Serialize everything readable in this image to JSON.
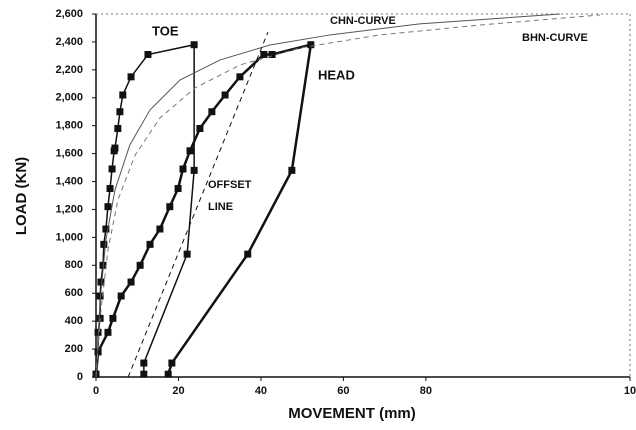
{
  "chart_data": {
    "type": "line",
    "xlabel": "MOVEMENT (mm)",
    "ylabel": "LOAD (KN)",
    "xlim": [
      0,
      129.5
    ],
    "ylim": [
      0,
      2600
    ],
    "xticks": [
      0,
      20,
      40,
      60,
      80,
      {
        "value": 129.5,
        "label": "10"
      }
    ],
    "yticks": [
      0,
      200,
      400,
      600,
      800,
      {
        "value": 1000,
        "label": "1,000"
      },
      {
        "value": 1200,
        "label": "1,200"
      },
      {
        "value": 1400,
        "label": "1,400"
      },
      {
        "value": 1600,
        "label": "1,600"
      },
      {
        "value": 1800,
        "label": "1,800"
      },
      {
        "value": 2000,
        "label": "2,000"
      },
      {
        "value": 2200,
        "label": "2,200"
      },
      {
        "value": 2400,
        "label": "2,400"
      },
      {
        "value": 2600,
        "label": "2,600"
      }
    ],
    "annotations": [
      "OFFSET",
      "LINE"
    ],
    "series": [
      {
        "name": "TOE",
        "color": "#111111",
        "marker": "square",
        "width": 1.5,
        "x": [
          0,
          0.5,
          0.5,
          1,
          1,
          1.2,
          1.7,
          1.9,
          2.4,
          2.9,
          3.4,
          3.9,
          4.4,
          4.6,
          5.3,
          5.8,
          6.5,
          8.5,
          12.6,
          23.8,
          23.8,
          22.1,
          11.6,
          11.6
        ],
        "values": [
          20,
          180,
          320,
          420,
          580,
          680,
          800,
          950,
          1060,
          1220,
          1350,
          1490,
          1620,
          1640,
          1780,
          1900,
          2020,
          2150,
          2310,
          2380,
          1480,
          880,
          100,
          20
        ]
      },
      {
        "name": "HEAD",
        "color": "#111111",
        "marker": "square",
        "width": 2.5,
        "x": [
          0,
          0.5,
          2.9,
          4.1,
          6.1,
          8.5,
          10.7,
          13.1,
          15.5,
          17.9,
          19.9,
          21.1,
          22.8,
          25.2,
          28.1,
          31.3,
          34.9,
          40.7,
          42.7,
          52.1,
          47.5,
          36.8,
          18.4,
          17.5
        ],
        "values": [
          20,
          180,
          320,
          420,
          580,
          680,
          800,
          950,
          1060,
          1220,
          1350,
          1490,
          1620,
          1780,
          1900,
          2020,
          2150,
          2310,
          2310,
          2380,
          1480,
          880,
          100,
          20
        ]
      },
      {
        "name": "CHN-CURVE",
        "color": "#555555",
        "width": 1,
        "x": [
          0,
          1,
          2.4,
          4.6,
          8.2,
          13.1,
          20.4,
          30.1,
          42.2,
          56.7,
          78.5,
          112.5
        ],
        "values": [
          0,
          552,
          981,
          1340,
          1662,
          1913,
          2128,
          2271,
          2378,
          2450,
          2529,
          2600
        ]
      },
      {
        "name": "BHN-CURVE",
        "color": "#777777",
        "width": 1,
        "dash": true,
        "x": [
          0,
          1.2,
          2.9,
          5.3,
          9.5,
          15.5,
          24,
          34.9,
          49.5,
          68.8,
          93.1,
          122.2
        ],
        "values": [
          0,
          480,
          910,
          1268,
          1590,
          1855,
          2070,
          2235,
          2357,
          2450,
          2521,
          2593
        ]
      },
      {
        "color": "#111111",
        "width": 1,
        "dash": true,
        "x": [
          7.8,
          41.7
        ],
        "values": [
          0,
          2470
        ]
      }
    ]
  }
}
